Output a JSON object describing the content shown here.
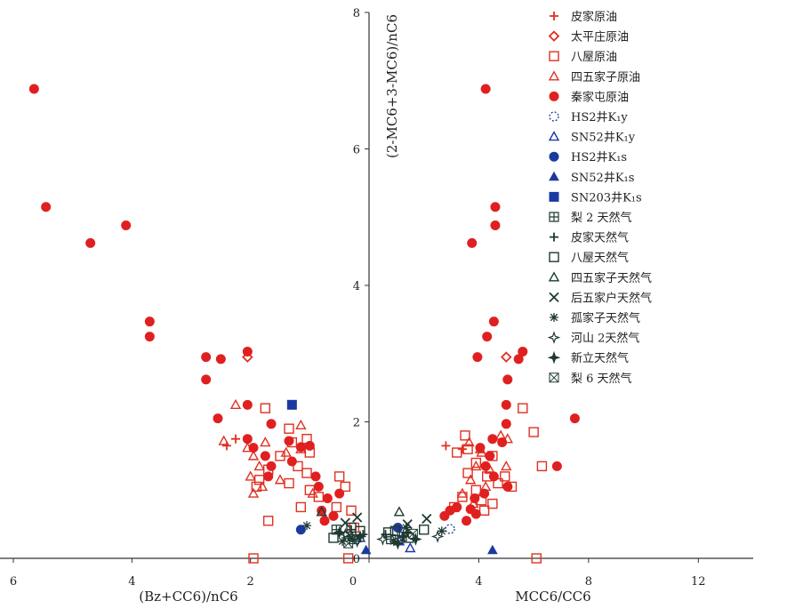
{
  "chart_data": {
    "type": "scatter",
    "title": "",
    "ylabel": "(2-MC6+3-MC6)/nC6",
    "ylim": [
      0,
      8
    ],
    "yticks": [
      "0",
      "2",
      "4",
      "6",
      "8"
    ],
    "left_panel": {
      "xlabel": "(Bz+CC6)/nC6",
      "xlim": [
        6,
        0
      ],
      "xticks": [
        "6",
        "4",
        "2",
        "0"
      ],
      "note": "x axis reversed (decreasing to the right)"
    },
    "right_panel": {
      "xlabel": "MCC6/CC6",
      "xlim": [
        0,
        14
      ],
      "xticks": [
        "0",
        "4",
        "8",
        "12"
      ]
    },
    "series": [
      {
        "name": "皮家原油",
        "legend_label": "皮家原油",
        "marker": "plus",
        "color": "#e03020",
        "filled": false,
        "points_left": [
          [
            2.4,
            1.65
          ],
          [
            2.25,
            1.75
          ]
        ],
        "points_right": [
          [
            2.8,
            1.65
          ],
          [
            3.4,
            1.6
          ]
        ]
      },
      {
        "name": "太平庄原油",
        "legend_label": "太平庄原油",
        "marker": "diamond",
        "color": "#e03020",
        "filled": false,
        "points_left": [
          [
            2.05,
            2.95
          ]
        ],
        "points_right": [
          [
            5.0,
            2.95
          ]
        ]
      },
      {
        "name": "八屋原油",
        "legend_label": "八屋原油",
        "marker": "square",
        "color": "#e03020",
        "filled": false,
        "points_left": [
          [
            1.75,
            2.2
          ],
          [
            1.35,
            1.9
          ],
          [
            1.05,
            1.75
          ],
          [
            1.0,
            1.55
          ],
          [
            1.5,
            1.5
          ],
          [
            1.7,
            1.3
          ],
          [
            1.2,
            1.35
          ],
          [
            1.05,
            1.25
          ],
          [
            1.35,
            1.1
          ],
          [
            0.85,
            0.9
          ],
          [
            0.5,
            1.2
          ],
          [
            0.4,
            1.05
          ],
          [
            0.55,
            0.75
          ],
          [
            0.3,
            0.7
          ],
          [
            1.85,
            1.15
          ],
          [
            1.0,
            1.0
          ],
          [
            1.3,
            1.7
          ],
          [
            1.9,
            1.05
          ],
          [
            0.25,
            0.45
          ],
          [
            0.35,
            0.0
          ],
          [
            1.95,
            0.0
          ],
          [
            1.7,
            0.55
          ],
          [
            1.15,
            0.75
          ]
        ],
        "points_right": [
          [
            3.5,
            1.8
          ],
          [
            3.2,
            1.55
          ],
          [
            3.9,
            1.4
          ],
          [
            3.6,
            1.25
          ],
          [
            4.5,
            1.5
          ],
          [
            4.7,
            1.1
          ],
          [
            4.3,
            1.2
          ],
          [
            3.9,
            1.0
          ],
          [
            3.4,
            0.9
          ],
          [
            4.95,
            1.2
          ],
          [
            5.6,
            2.2
          ],
          [
            6.0,
            1.85
          ],
          [
            6.3,
            1.35
          ],
          [
            4.1,
            0.85
          ],
          [
            3.1,
            0.75
          ],
          [
            6.1,
            0.0
          ],
          [
            4.2,
            0.7
          ],
          [
            3.6,
            1.6
          ],
          [
            5.2,
            1.05
          ],
          [
            4.5,
            0.8
          ]
        ]
      },
      {
        "name": "四五家子原油",
        "legend_label": "四五家子原油",
        "marker": "triangle",
        "color": "#e03020",
        "filled": false,
        "points_left": [
          [
            2.25,
            2.25
          ],
          [
            2.45,
            1.72
          ],
          [
            2.05,
            1.62
          ],
          [
            1.95,
            1.5
          ],
          [
            1.85,
            1.35
          ],
          [
            2.0,
            1.2
          ],
          [
            1.8,
            1.05
          ],
          [
            1.95,
            0.95
          ],
          [
            1.4,
            1.55
          ],
          [
            1.5,
            1.15
          ],
          [
            1.15,
            1.95
          ],
          [
            1.75,
            1.7
          ],
          [
            0.95,
            0.95
          ],
          [
            1.15,
            1.6
          ]
        ],
        "points_right": [
          [
            3.65,
            1.7
          ],
          [
            4.1,
            1.55
          ],
          [
            3.9,
            1.35
          ],
          [
            3.7,
            1.15
          ],
          [
            4.4,
            1.3
          ],
          [
            4.8,
            1.8
          ],
          [
            5.05,
            1.75
          ],
          [
            4.25,
            1.05
          ],
          [
            3.8,
            0.8
          ],
          [
            4.05,
            1.6
          ],
          [
            3.4,
            0.95
          ],
          [
            5.0,
            1.35
          ]
        ]
      },
      {
        "name": "秦家屯原油",
        "legend_label": "秦家屯原油",
        "marker": "circle",
        "color": "#e02020",
        "filled": true,
        "points_left": [
          [
            5.65,
            6.88
          ],
          [
            5.45,
            5.15
          ],
          [
            4.1,
            4.88
          ],
          [
            4.7,
            4.62
          ],
          [
            3.7,
            3.47
          ],
          [
            3.7,
            3.25
          ],
          [
            2.75,
            2.95
          ],
          [
            2.5,
            2.92
          ],
          [
            2.05,
            3.03
          ],
          [
            2.75,
            2.62
          ],
          [
            2.05,
            2.25
          ],
          [
            2.55,
            2.05
          ],
          [
            1.65,
            1.97
          ],
          [
            2.05,
            1.75
          ],
          [
            1.95,
            1.62
          ],
          [
            1.35,
            1.72
          ],
          [
            1.75,
            1.5
          ],
          [
            1.65,
            1.35
          ],
          [
            1.0,
            1.65
          ],
          [
            1.15,
            1.63
          ],
          [
            1.7,
            1.2
          ],
          [
            1.3,
            1.42
          ],
          [
            0.9,
            1.2
          ],
          [
            0.85,
            1.05
          ],
          [
            0.7,
            0.88
          ],
          [
            0.8,
            0.7
          ],
          [
            0.5,
            0.95
          ],
          [
            0.6,
            0.62
          ],
          [
            0.75,
            0.55
          ]
        ],
        "points_right": [
          [
            4.25,
            6.88
          ],
          [
            4.6,
            5.15
          ],
          [
            4.6,
            4.88
          ],
          [
            3.75,
            4.62
          ],
          [
            4.55,
            3.47
          ],
          [
            4.3,
            3.25
          ],
          [
            3.95,
            2.95
          ],
          [
            5.6,
            3.03
          ],
          [
            5.45,
            2.92
          ],
          [
            5.05,
            2.62
          ],
          [
            5.0,
            2.25
          ],
          [
            7.5,
            2.05
          ],
          [
            5.0,
            1.97
          ],
          [
            4.5,
            1.75
          ],
          [
            4.85,
            1.7
          ],
          [
            4.05,
            1.62
          ],
          [
            4.4,
            1.5
          ],
          [
            4.25,
            1.35
          ],
          [
            6.85,
            1.35
          ],
          [
            4.55,
            1.2
          ],
          [
            5.05,
            1.05
          ],
          [
            3.85,
            0.88
          ],
          [
            3.7,
            0.72
          ],
          [
            2.95,
            0.7
          ],
          [
            3.9,
            0.65
          ],
          [
            2.75,
            0.62
          ],
          [
            3.2,
            0.75
          ],
          [
            4.2,
            0.95
          ],
          [
            3.55,
            0.55
          ]
        ]
      },
      {
        "name": "HS2井K1y",
        "legend_label": "HS2井K₁y",
        "marker": "dashed-circle",
        "color": "#1a3aa0",
        "filled": false,
        "points_left": [],
        "points_right": [
          [
            2.95,
            0.43
          ]
        ]
      },
      {
        "name": "SN52井K1y",
        "legend_label": "SN52井K₁y",
        "marker": "triangle",
        "color": "#1a3aa0",
        "filled": false,
        "points_left": [
          [
            0.15,
            0.3
          ]
        ],
        "points_right": [
          [
            1.5,
            0.15
          ],
          [
            1.1,
            0.25
          ]
        ]
      },
      {
        "name": "HS2井K1s",
        "legend_label": "HS2井K₁s",
        "marker": "circle",
        "color": "#1a3aa0",
        "filled": true,
        "points_left": [
          [
            1.15,
            0.42
          ]
        ],
        "points_right": [
          [
            1.05,
            0.45
          ]
        ]
      },
      {
        "name": "SN52井K1s",
        "legend_label": "SN52井K₁s",
        "marker": "triangle",
        "color": "#1a3aa0",
        "filled": true,
        "points_left": [
          [
            0.05,
            0.12
          ]
        ],
        "points_right": [
          [
            4.5,
            0.12
          ]
        ]
      },
      {
        "name": "SN203井K1s",
        "legend_label": "SN203井K₁s",
        "marker": "square",
        "color": "#1a3aa0",
        "filled": true,
        "points_left": [
          [
            1.3,
            2.25
          ]
        ],
        "points_right": []
      },
      {
        "name": "梨2天然气",
        "legend_label": "梨 2 天然气",
        "marker": "boxed-plus",
        "color": "#1e3a32",
        "filled": false,
        "points_left": [
          [
            0.35,
            0.32
          ],
          [
            0.25,
            0.28
          ],
          [
            0.55,
            0.42
          ]
        ],
        "points_right": [
          [
            0.8,
            0.28
          ],
          [
            1.2,
            0.32
          ]
        ]
      },
      {
        "name": "皮家天然气",
        "legend_label": "皮家天然气",
        "marker": "plus",
        "color": "#1e3a32",
        "filled": false,
        "points_left": [
          [
            0.1,
            0.35
          ],
          [
            0.3,
            0.42
          ]
        ],
        "points_right": [
          [
            0.6,
            0.35
          ],
          [
            1.4,
            0.38
          ]
        ]
      },
      {
        "name": "八屋天然气",
        "legend_label": "八屋天然气",
        "marker": "square",
        "color": "#1e3a32",
        "filled": false,
        "points_left": [
          [
            0.3,
            0.45
          ],
          [
            0.15,
            0.4
          ],
          [
            0.6,
            0.3
          ]
        ],
        "points_right": [
          [
            0.7,
            0.38
          ],
          [
            0.95,
            0.4
          ],
          [
            1.45,
            0.3
          ],
          [
            2.0,
            0.42
          ]
        ]
      },
      {
        "name": "四五家子天然气",
        "legend_label": "四五家子天然气",
        "marker": "triangle",
        "color": "#1e3a32",
        "filled": false,
        "points_left": [
          [
            0.8,
            0.68
          ]
        ],
        "points_right": [
          [
            1.1,
            0.68
          ]
        ]
      },
      {
        "name": "后五家户天然气",
        "legend_label": "后五家户天然气",
        "marker": "cross",
        "color": "#1e3a32",
        "filled": false,
        "points_left": [
          [
            0.2,
            0.6
          ],
          [
            0.4,
            0.52
          ]
        ],
        "points_right": [
          [
            2.1,
            0.58
          ],
          [
            1.4,
            0.5
          ]
        ]
      },
      {
        "name": "孤家子天然气",
        "legend_label": "孤家子天然气",
        "marker": "asterisk",
        "color": "#1e3a32",
        "filled": false,
        "points_left": [
          [
            1.05,
            0.48
          ],
          [
            0.3,
            0.3
          ],
          [
            0.45,
            0.25
          ]
        ],
        "points_right": [
          [
            2.65,
            0.4
          ],
          [
            1.35,
            0.45
          ],
          [
            0.9,
            0.25
          ]
        ]
      },
      {
        "name": "河山2天然气",
        "legend_label": "河山 2天然气",
        "marker": "star-open",
        "color": "#1e3a32",
        "filled": false,
        "points_left": [
          [
            0.4,
            0.35
          ],
          [
            0.2,
            0.25
          ]
        ],
        "points_right": [
          [
            2.5,
            0.32
          ],
          [
            0.5,
            0.28
          ]
        ]
      },
      {
        "name": "新立天然气",
        "legend_label": "新立天然气",
        "marker": "star-filled",
        "color": "#1e3a32",
        "filled": true,
        "points_left": [
          [
            0.15,
            0.32
          ],
          [
            0.5,
            0.38
          ]
        ],
        "points_right": [
          [
            1.25,
            0.32
          ],
          [
            1.7,
            0.28
          ],
          [
            1.05,
            0.22
          ]
        ]
      },
      {
        "name": "梨6天然气",
        "legend_label": "梨 6 天然气",
        "marker": "boxed-x",
        "color": "#1e3a32",
        "filled": false,
        "points_left": [
          [
            0.35,
            0.22
          ]
        ],
        "points_right": [
          [
            1.6,
            0.36
          ]
        ]
      }
    ]
  }
}
